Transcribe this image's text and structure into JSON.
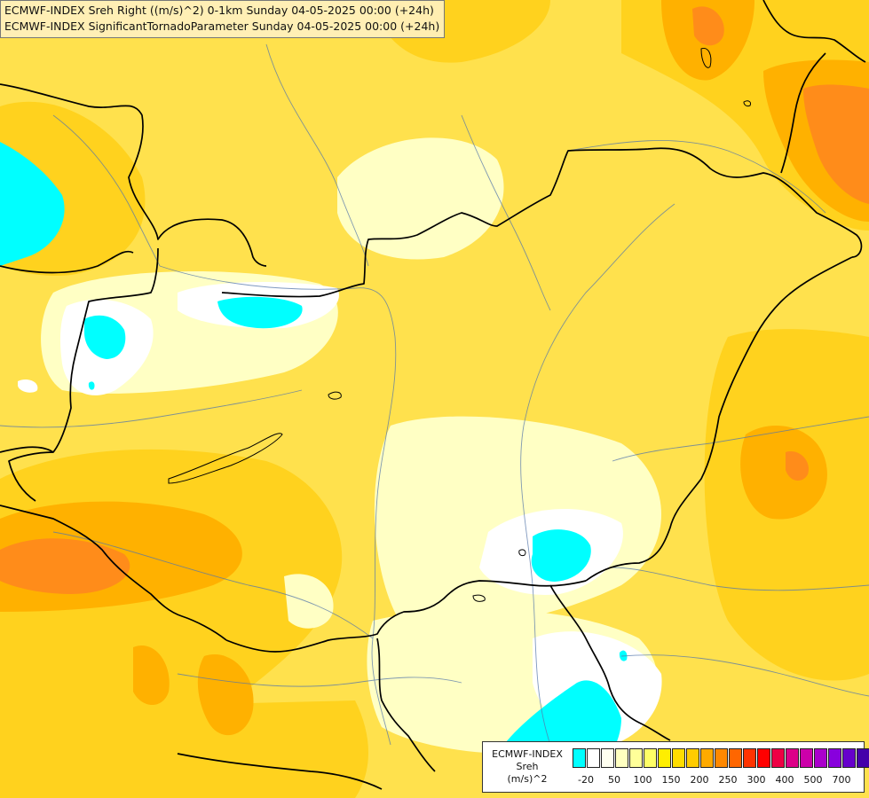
{
  "header": {
    "line1": "ECMWF-INDEX Sreh Right ((m/s)^2) 0-1km Sunday 04-05-2025 00:00 (+24h)",
    "line2": "ECMWF-INDEX SignificantTornadoParameter Sunday 04-05-2025 00:00 (+24h)"
  },
  "legend": {
    "title_lines": [
      "ECMWF-INDEX",
      "Sreh",
      "(m/s)^2"
    ],
    "colors": [
      "#00ffff",
      "#ffffff",
      "#fffff0",
      "#ffffc0",
      "#ffff99",
      "#ffff66",
      "#ffee00",
      "#ffdd00",
      "#ffcc00",
      "#ffaa00",
      "#ff8800",
      "#ff6600",
      "#ff3300",
      "#ff0000",
      "#ee0044",
      "#dd0088",
      "#cc00aa",
      "#aa00cc",
      "#8800dd",
      "#6600cc",
      "#4400aa",
      "#220088",
      "#000080"
    ],
    "tick_labels": [
      "-20",
      "50",
      "100",
      "150",
      "200",
      "250",
      "300",
      "400",
      "500",
      "700"
    ]
  },
  "map_colors": {
    "base": "#ffe14d",
    "gold": "#ffd21e",
    "orange": "#ffb100",
    "dark_orange": "#ff8c1a",
    "pale": "#ffffc4",
    "white": "#ffffff",
    "cyan": "#00ffff",
    "border": "#000000",
    "river": "#5577aa"
  }
}
